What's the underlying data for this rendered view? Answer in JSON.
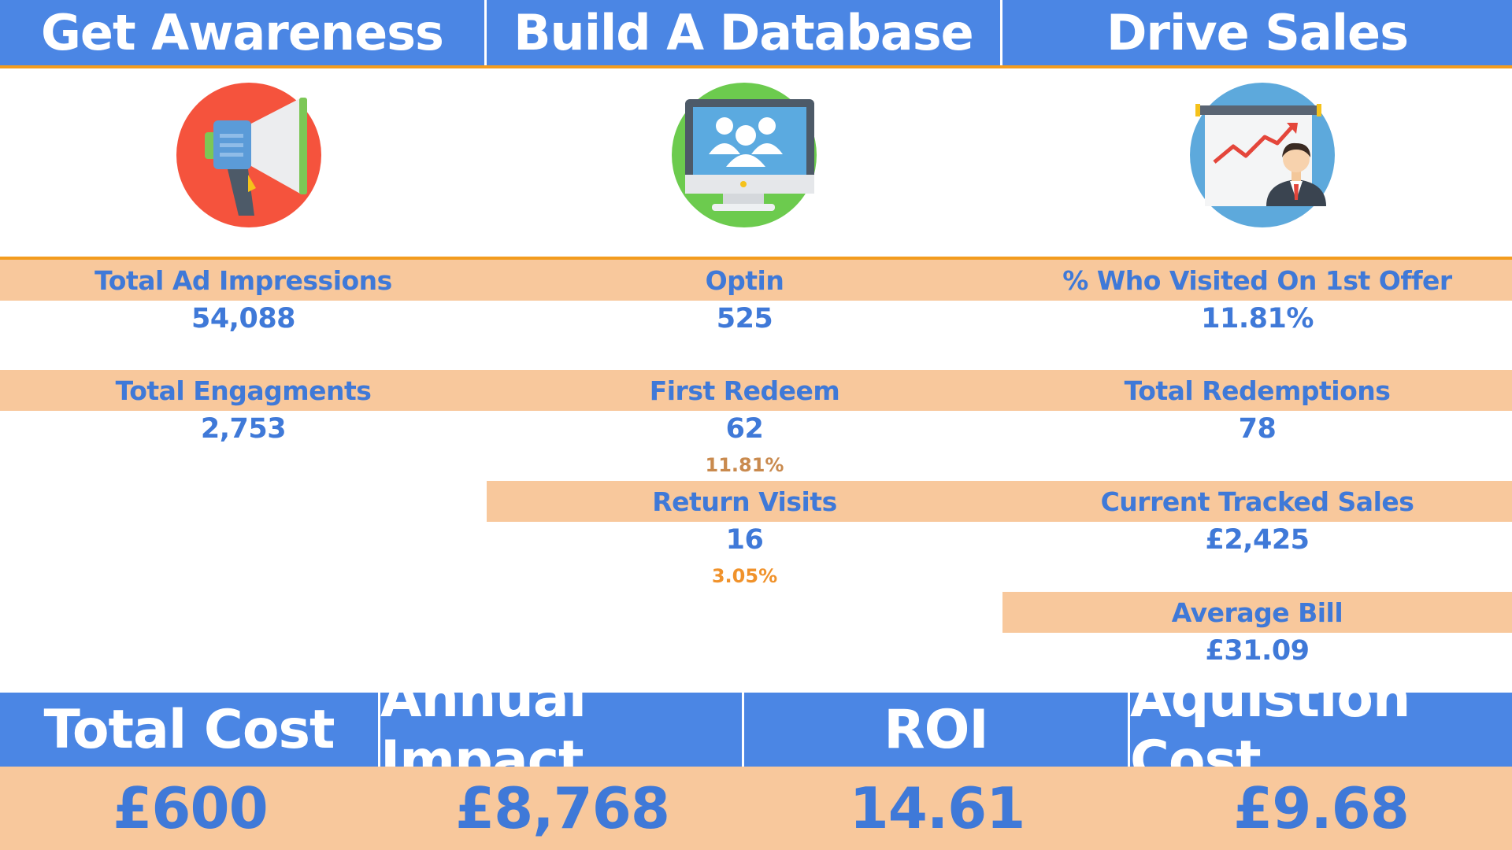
{
  "header": {
    "col1": "Get Awareness",
    "col2": "Build A Database",
    "col3": "Drive Sales"
  },
  "icons": {
    "col1": "megaphone-icon",
    "col2": "monitor-users-icon",
    "col3": "presentation-chart-icon"
  },
  "colors": {
    "header_blue": "#4b86e4",
    "accent_orange": "#f39c1f",
    "band_peach": "#f8c89c",
    "value_blue": "#3f79d8"
  },
  "awareness": {
    "impressions_label": "Total Ad Impressions",
    "impressions_value": "54,088",
    "engagements_label": "Total Engagments",
    "engagements_value": "2,753"
  },
  "database": {
    "optin_label": "Optin",
    "optin_value": "525",
    "first_redeem_label": "First Redeem",
    "first_redeem_value": "62",
    "first_redeem_pct": "11.81%",
    "return_visits_label": "Return Visits",
    "return_visits_value": "16",
    "return_visits_pct": "3.05%"
  },
  "sales": {
    "visited_label": "% Who Visited On 1st Offer",
    "visited_value": "11.81%",
    "redemptions_label": "Total Redemptions",
    "redemptions_value": "78",
    "tracked_label": "Current Tracked Sales",
    "tracked_value": "£2,425",
    "avg_bill_label": "Average Bill",
    "avg_bill_value": "£31.09"
  },
  "summary": {
    "total_cost_label": "Total Cost",
    "total_cost_value": "£600",
    "annual_impact_label": "Annual Impact",
    "annual_impact_value": "£8,768",
    "roi_label": "ROI",
    "roi_value": "14.61",
    "acq_cost_label": "Aquistion Cost",
    "acq_cost_value": "£9.68"
  }
}
